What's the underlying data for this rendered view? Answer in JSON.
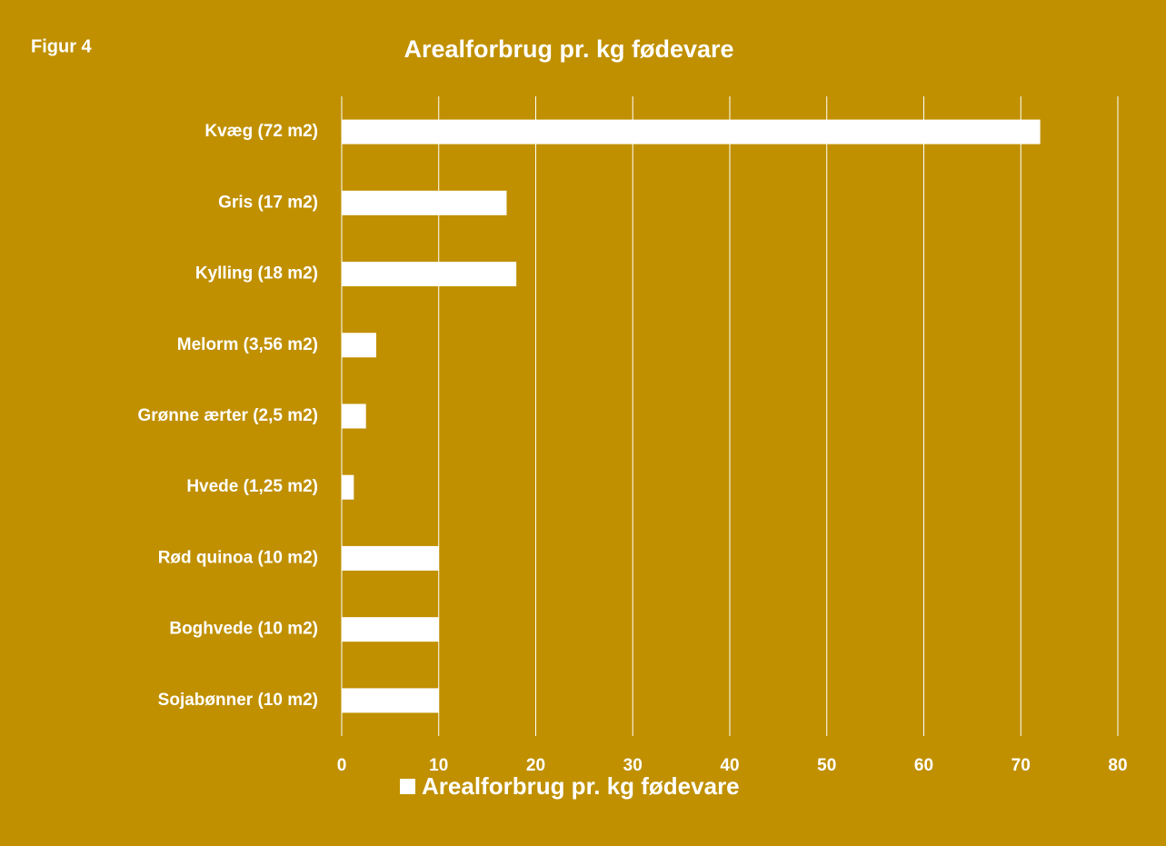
{
  "chart_data": {
    "type": "barh",
    "title": "Arealforbrug pr. kg fødevare",
    "annotation": "Figur 4",
    "categories": [
      "Kvæg (72 m2)",
      "Gris (17 m2)",
      "Kylling (18 m2)",
      "Melorm (3,56 m2)",
      "Grønne ærter (2,5 m2)",
      "Hvede (1,25 m2)",
      "Rød quinoa (10 m2)",
      "Boghvede (10 m2)",
      "Sojabønner (10 m2)"
    ],
    "series": [
      {
        "name": "Arealforbrug pr. kg fødevare",
        "color": "#ffffff",
        "values": [
          72,
          17,
          18,
          3.56,
          2.5,
          1.25,
          10,
          10,
          10
        ]
      }
    ],
    "xlim": [
      0,
      80
    ],
    "xticks": [
      0,
      10,
      20,
      30,
      40,
      50,
      60,
      70,
      80
    ],
    "grid": true,
    "legend": "bottom",
    "background": "#c09000"
  }
}
